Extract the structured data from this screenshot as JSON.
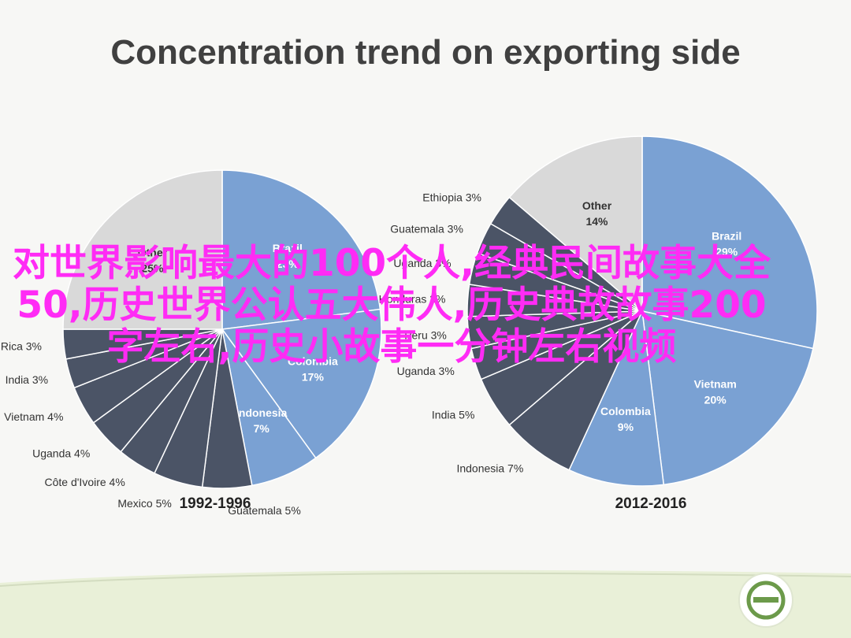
{
  "title": "Concentration trend on exporting side",
  "colors": {
    "dark_slice": "#4b5466",
    "blue_slice": "#7aa1d3",
    "other_slice": "#d9d9d9",
    "watermark": "#ff2bf5",
    "footer_band": "#e9f0d8"
  },
  "watermark_text": "对世界影响最大的100个人,经典民间故事大全50,历史世界公认五大伟人,历史典故故事200字左右,历史小故事一分钟左右视频",
  "footer": {
    "logo_icon": "circle-logo-icon"
  },
  "chart_data": [
    {
      "type": "pie",
      "period_label": "1992-1996",
      "slices": [
        {
          "label": "Brazil",
          "value": 23,
          "color": "#7aa1d3"
        },
        {
          "label": "Colombia",
          "value": 17,
          "color": "#7aa1d3"
        },
        {
          "label": "Indonesia",
          "value": 7,
          "color": "#7aa1d3"
        },
        {
          "label": "Guatemala",
          "value": 5,
          "color": "#4b5466"
        },
        {
          "label": "Mexico",
          "value": 5,
          "color": "#4b5466"
        },
        {
          "label": "Côte d'Ivoire",
          "value": 4,
          "color": "#4b5466"
        },
        {
          "label": "Uganda",
          "value": 4,
          "color": "#4b5466"
        },
        {
          "label": "Vietnam",
          "value": 4,
          "color": "#4b5466"
        },
        {
          "label": "India",
          "value": 3,
          "color": "#4b5466"
        },
        {
          "label": "Costa Rica",
          "value": 3,
          "color": "#4b5466"
        },
        {
          "label": "Other",
          "value": 25,
          "color": "#d9d9d9"
        }
      ]
    },
    {
      "type": "pie",
      "period_label": "2012-2016",
      "slices": [
        {
          "label": "Brazil",
          "value": 29,
          "color": "#7aa1d3"
        },
        {
          "label": "Vietnam",
          "value": 20,
          "color": "#7aa1d3"
        },
        {
          "label": "Colombia",
          "value": 9,
          "color": "#7aa1d3"
        },
        {
          "label": "Indonesia",
          "value": 7,
          "color": "#4b5466"
        },
        {
          "label": "India",
          "value": 5,
          "color": "#4b5466"
        },
        {
          "label": "Uganda",
          "value": 3,
          "color": "#4b5466"
        },
        {
          "label": "Peru",
          "value": 3,
          "color": "#4b5466"
        },
        {
          "label": "Honduras",
          "value": 3,
          "color": "#4b5466"
        },
        {
          "label": "Uganda",
          "value": 3,
          "color": "#4b5466"
        },
        {
          "label": "Guatemala",
          "value": 3,
          "color": "#4b5466"
        },
        {
          "label": "Ethiopia",
          "value": 3,
          "color": "#4b5466"
        },
        {
          "label": "Other",
          "value": 14,
          "color": "#d9d9d9"
        }
      ]
    }
  ]
}
